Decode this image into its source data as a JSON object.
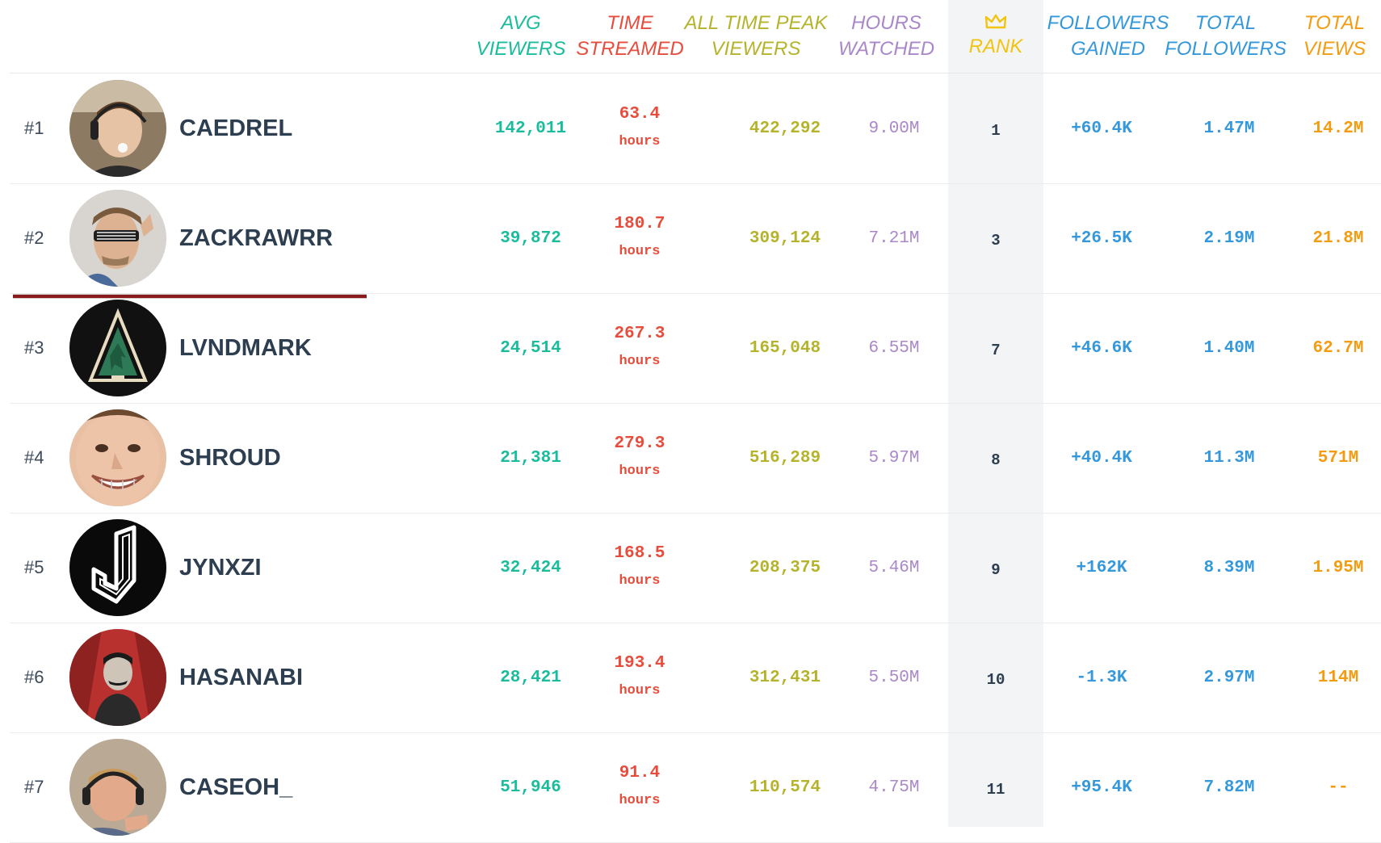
{
  "header": {
    "avg_viewers": [
      "AVG",
      "VIEWERS"
    ],
    "time_streamed": [
      "TIME",
      "STREAMED"
    ],
    "peak_viewers": [
      "ALL TIME PEAK",
      "VIEWERS"
    ],
    "hours_watched": [
      "HOURS",
      "WATCHED"
    ],
    "rank": "RANK",
    "followers_gained": [
      "FOLLOWERS",
      "GAINED"
    ],
    "total_followers": [
      "TOTAL",
      "FOLLOWERS"
    ],
    "total_views": [
      "TOTAL",
      "VIEWS"
    ]
  },
  "colors": {
    "avg": "#1abc9c",
    "time": "#e74c3c",
    "peak": "#b5b32b",
    "hours": "#a987c9",
    "rank_header": "#f1c40f",
    "followers": "#3498db",
    "views": "#f39c12",
    "name": "#2c3e50"
  },
  "rows": [
    {
      "pos": "#1",
      "name": "CAEDREL",
      "avg": "142,011",
      "time": "63.4",
      "unit": "hours",
      "peak": "422,292",
      "hours": "9.00M",
      "rank": "1",
      "gained": "+60.4K",
      "followers": "1.47M",
      "views": "14.2M",
      "avatar_icon": "person-headset-avatar"
    },
    {
      "pos": "#2",
      "name": "ZACKRAWRR",
      "avg": "39,872",
      "time": "180.7",
      "unit": "hours",
      "peak": "309,124",
      "hours": "7.21M",
      "rank": "3",
      "gained": "+26.5K",
      "followers": "2.19M",
      "views": "21.8M",
      "avatar_icon": "person-sunglasses-avatar"
    },
    {
      "pos": "#3",
      "name": "LVNDMARK",
      "avg": "24,514",
      "time": "267.3",
      "unit": "hours",
      "peak": "165,048",
      "hours": "6.55M",
      "rank": "7",
      "gained": "+46.6K",
      "followers": "1.40M",
      "views": "62.7M",
      "avatar_icon": "triangle-logo-avatar"
    },
    {
      "pos": "#4",
      "name": "SHROUD",
      "avg": "21,381",
      "time": "279.3",
      "unit": "hours",
      "peak": "516,289",
      "hours": "5.97M",
      "rank": "8",
      "gained": "+40.4K",
      "followers": "11.3M",
      "views": "571M",
      "avatar_icon": "face-grin-avatar"
    },
    {
      "pos": "#5",
      "name": "JYNXZI",
      "avg": "32,424",
      "time": "168.5",
      "unit": "hours",
      "peak": "208,375",
      "hours": "5.46M",
      "rank": "9",
      "gained": "+162K",
      "followers": "8.39M",
      "views": "1.95M",
      "avatar_icon": "j-logo-avatar"
    },
    {
      "pos": "#6",
      "name": "HASANABI",
      "avg": "28,421",
      "time": "193.4",
      "unit": "hours",
      "peak": "312,431",
      "hours": "5.50M",
      "rank": "10",
      "gained": "-1.3K",
      "followers": "2.97M",
      "views": "114M",
      "avatar_icon": "illustrated-man-avatar"
    },
    {
      "pos": "#7",
      "name": "CASEOH_",
      "avg": "51,946",
      "time": "91.4",
      "unit": "hours",
      "peak": "110,574",
      "hours": "4.75M",
      "rank": "11",
      "gained": "+95.4K",
      "followers": "7.82M",
      "views": "--",
      "avatar_icon": "person-headset-avatar"
    }
  ]
}
